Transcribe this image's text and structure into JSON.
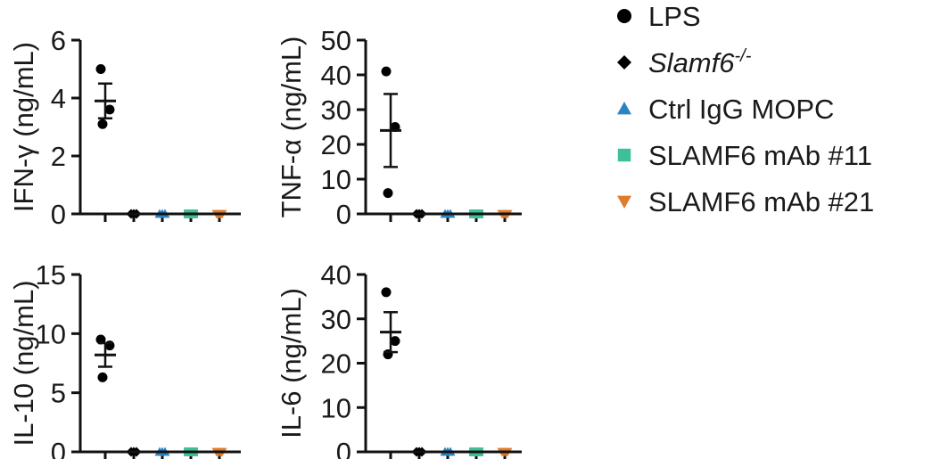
{
  "groups": [
    {
      "name": "LPS",
      "marker": "circle",
      "color": "#000000",
      "italic": false
    },
    {
      "name": "Slamf6",
      "superscript": "-/-",
      "marker": "diamond",
      "color": "#000000",
      "italic": true
    },
    {
      "name": "Ctrl IgG MOPC",
      "marker": "triangle-up",
      "color": "#2b83c4",
      "italic": false
    },
    {
      "name": "SLAMF6 mAb #11",
      "marker": "square",
      "color": "#3dbf9a",
      "italic": false
    },
    {
      "name": "SLAMF6 mAb #21",
      "marker": "triangle-down",
      "color": "#e07b2a",
      "italic": false
    }
  ],
  "chart_data": [
    {
      "type": "scatter",
      "ylabel": "IFN-γ (ng/mL)",
      "ylim": [
        0,
        6
      ],
      "yticks": [
        0,
        2,
        4,
        6
      ],
      "groups": [
        {
          "name": "LPS",
          "points": [
            5.0,
            3.6,
            3.1
          ],
          "mean": 3.9,
          "sem": 0.6
        },
        {
          "name": "Slamf6-/-",
          "points": [
            0,
            0,
            0
          ],
          "mean": 0,
          "sem": 0
        },
        {
          "name": "Ctrl IgG MOPC",
          "points": [
            0,
            0,
            0
          ],
          "mean": 0,
          "sem": 0
        },
        {
          "name": "SLAMF6 mAb #11",
          "points": [
            0,
            0,
            0
          ],
          "mean": 0,
          "sem": 0
        },
        {
          "name": "SLAMF6 mAb #21",
          "points": [
            0,
            0,
            0
          ],
          "mean": 0,
          "sem": 0
        }
      ]
    },
    {
      "type": "scatter",
      "ylabel": "TNF-α (ng/mL)",
      "ylim": [
        0,
        50
      ],
      "yticks": [
        0,
        10,
        20,
        30,
        40,
        50
      ],
      "groups": [
        {
          "name": "LPS",
          "points": [
            41,
            25,
            6
          ],
          "mean": 24,
          "sem": 10.5
        },
        {
          "name": "Slamf6-/-",
          "points": [
            0,
            0,
            0
          ],
          "mean": 0,
          "sem": 0
        },
        {
          "name": "Ctrl IgG MOPC",
          "points": [
            0,
            0,
            0
          ],
          "mean": 0,
          "sem": 0
        },
        {
          "name": "SLAMF6 mAb #11",
          "points": [
            0,
            0,
            0
          ],
          "mean": 0,
          "sem": 0
        },
        {
          "name": "SLAMF6 mAb #21",
          "points": [
            0,
            0,
            0
          ],
          "mean": 0,
          "sem": 0
        }
      ]
    },
    {
      "type": "scatter",
      "ylabel": "IL-10 (ng/mL)",
      "ylim": [
        0,
        15
      ],
      "yticks": [
        0,
        5,
        10,
        15
      ],
      "groups": [
        {
          "name": "LPS",
          "points": [
            9.5,
            9.0,
            6.3
          ],
          "mean": 8.2,
          "sem": 1.0
        },
        {
          "name": "Slamf6-/-",
          "points": [
            0,
            0,
            0
          ],
          "mean": 0,
          "sem": 0
        },
        {
          "name": "Ctrl IgG MOPC",
          "points": [
            0,
            0,
            0
          ],
          "mean": 0,
          "sem": 0
        },
        {
          "name": "SLAMF6 mAb #11",
          "points": [
            0,
            0,
            0
          ],
          "mean": 0,
          "sem": 0
        },
        {
          "name": "SLAMF6 mAb #21",
          "points": [
            0,
            0,
            0
          ],
          "mean": 0,
          "sem": 0
        }
      ]
    },
    {
      "type": "scatter",
      "ylabel": "IL-6 (ng/mL)",
      "ylim": [
        0,
        40
      ],
      "yticks": [
        0,
        10,
        20,
        30,
        40
      ],
      "groups": [
        {
          "name": "LPS",
          "points": [
            36,
            25,
            22
          ],
          "mean": 27,
          "sem": 4.5
        },
        {
          "name": "Slamf6-/-",
          "points": [
            0,
            0,
            0
          ],
          "mean": 0,
          "sem": 0
        },
        {
          "name": "Ctrl IgG MOPC",
          "points": [
            0,
            0,
            0
          ],
          "mean": 0,
          "sem": 0
        },
        {
          "name": "SLAMF6 mAb #11",
          "points": [
            0,
            0,
            0
          ],
          "mean": 0,
          "sem": 0
        },
        {
          "name": "SLAMF6 mAb #21",
          "points": [
            0,
            0,
            0
          ],
          "mean": 0,
          "sem": 0
        }
      ]
    }
  ]
}
